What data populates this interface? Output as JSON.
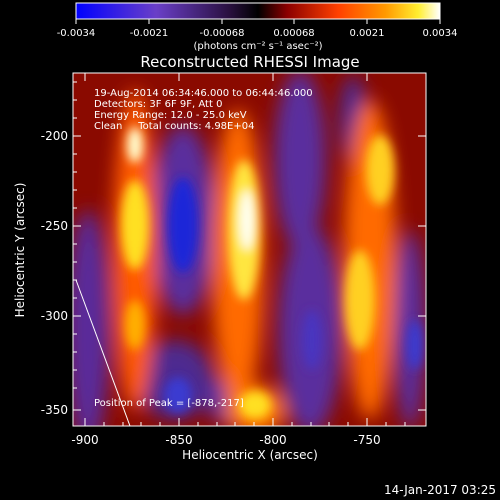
{
  "colorbar": {
    "tick_labels": [
      "-0.0034",
      "-0.0021",
      "-0.00068",
      "0.00068",
      "0.0021",
      "0.0034"
    ],
    "units": "(photons cm⁻² s⁻¹ asec⁻²)"
  },
  "plot": {
    "title": "Reconstructed RHESSI Image",
    "annotations": [
      "19-Aug-2014 06:34:46.000 to 06:44:46.000",
      "Detectors: 3F 6F 9F, Att 0",
      "Energy Range: 12.0 - 25.0 keV",
      "Clean     Total counts: 4.98E+04"
    ],
    "peak_label": "Position of Peak = [-878,-217]"
  },
  "axes": {
    "xlabel": "Heliocentric X (arcsec)",
    "ylabel": "Heliocentric Y (arcsec)",
    "x_ticks": [
      "-900",
      "-850",
      "-800",
      "-750"
    ],
    "y_ticks": [
      "-200",
      "-250",
      "-300",
      "-350"
    ]
  },
  "footer": {
    "timestamp": "14-Jan-2017 03:25"
  },
  "map_data": {
    "x_range": [
      -906,
      -714
    ],
    "y_range": [
      -358,
      -172
    ],
    "colormap": [
      "#0000ff",
      "#5a3fb5",
      "#000000",
      "#8b0000",
      "#ff8000",
      "#ffff00",
      "#ffffff"
    ]
  }
}
